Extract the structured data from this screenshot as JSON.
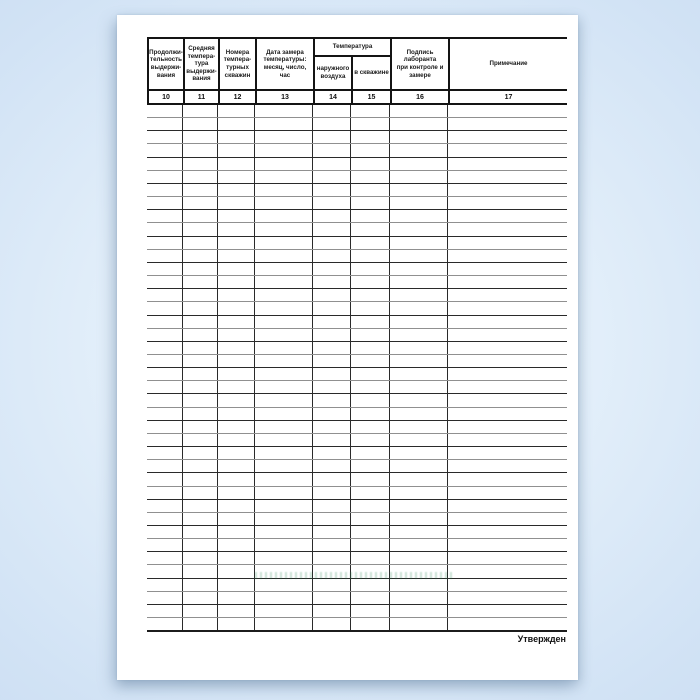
{
  "colors": {
    "background_blue": "#cfe2f5",
    "paper_white": "#ffffff",
    "line_black": "#141414",
    "watermark_green": "#2e8b57"
  },
  "table": {
    "temp_group_label": "Температура",
    "columns": [
      {
        "number": "10",
        "header": "Продолжи-\nтельность\nвыдержи-\nвания"
      },
      {
        "number": "11",
        "header": "Средняя\nтемпера-\nтура\nвыдержи-\nвания"
      },
      {
        "number": "12",
        "header": "Номера\nтемпера-\nтурных\nскважин"
      },
      {
        "number": "13",
        "header": "Дата замера\nтемпературы:\nмесяц, число, час"
      },
      {
        "number": "14",
        "header": "наружного\nвоздуха"
      },
      {
        "number": "15",
        "header": "в скважине"
      },
      {
        "number": "16",
        "header": "Подпись лаборанта\nпри контроле и\nзамере"
      },
      {
        "number": "17",
        "header": "Примечание"
      }
    ],
    "body_row_count": 40
  },
  "footer": {
    "approved": "Утвержден"
  }
}
